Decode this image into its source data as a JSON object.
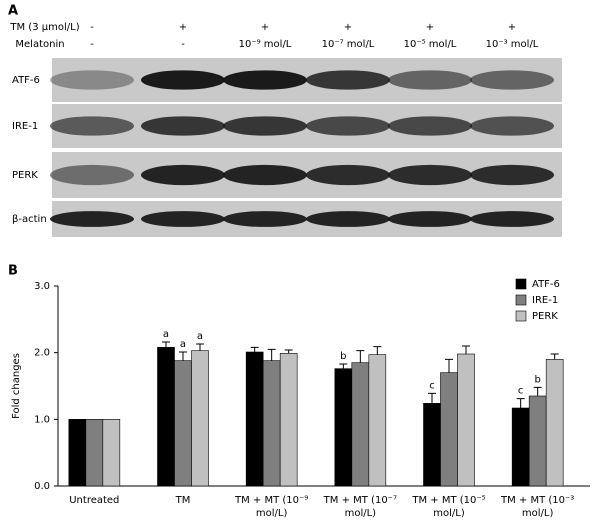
{
  "panel_a": {
    "label": "A",
    "rows": [
      {
        "label": "TM (3 μmol/L)",
        "cells": [
          "-",
          "+",
          "+",
          "+",
          "+",
          "+"
        ]
      },
      {
        "label": "Melatonin",
        "cells": [
          "-",
          "-",
          "10⁻⁹ mol/L",
          "10⁻⁷ mol/L",
          "10⁻⁵ mol/L",
          "10⁻³ mol/L"
        ]
      }
    ],
    "blots": [
      "ATF-6",
      "IRE-1",
      "PERK",
      "β-actin"
    ]
  },
  "chart_data": {
    "type": "bar",
    "panel_label": "B",
    "y_label": "Fold changes",
    "categories": [
      "Untreated",
      "TM",
      "TM + MT (10⁻⁹ mol/L)",
      "TM + MT (10⁻⁷ mol/L)",
      "TM + MT (10⁻⁵ mol/L)",
      "TM + MT (10⁻³ mol/L)"
    ],
    "series": [
      {
        "name": "ATF-6",
        "color": "#000000",
        "values": [
          1,
          2.08,
          2.01,
          1.76,
          1.24,
          1.17
        ],
        "errors": [
          null,
          0.08,
          0.07,
          0.07,
          0.15,
          0.14
        ],
        "letters": [
          null,
          "a",
          null,
          "b",
          "c",
          "c"
        ]
      },
      {
        "name": "IRE-1",
        "color": "#7f7f7f",
        "values": [
          1,
          1.88,
          1.88,
          1.85,
          1.7,
          1.35
        ],
        "errors": [
          null,
          0.13,
          0.17,
          0.18,
          0.2,
          0.13
        ],
        "letters": [
          null,
          "a",
          null,
          null,
          null,
          "b"
        ]
      },
      {
        "name": "PERK",
        "color": "#c0c0c0",
        "values": [
          1,
          2.03,
          1.99,
          1.97,
          1.98,
          1.9
        ],
        "errors": [
          null,
          0.1,
          0.05,
          0.12,
          0.12,
          0.08
        ],
        "letters": [
          null,
          "a",
          null,
          null,
          null,
          null
        ]
      }
    ],
    "ylim": [
      0,
      3
    ],
    "yticks": [
      {
        "value": 0,
        "label": "0.0"
      },
      {
        "value": 1,
        "label": "1.0"
      },
      {
        "value": 2,
        "label": "2.0"
      },
      {
        "value": 3,
        "label": "3.0"
      }
    ],
    "grid": false,
    "legend": "top-right"
  }
}
